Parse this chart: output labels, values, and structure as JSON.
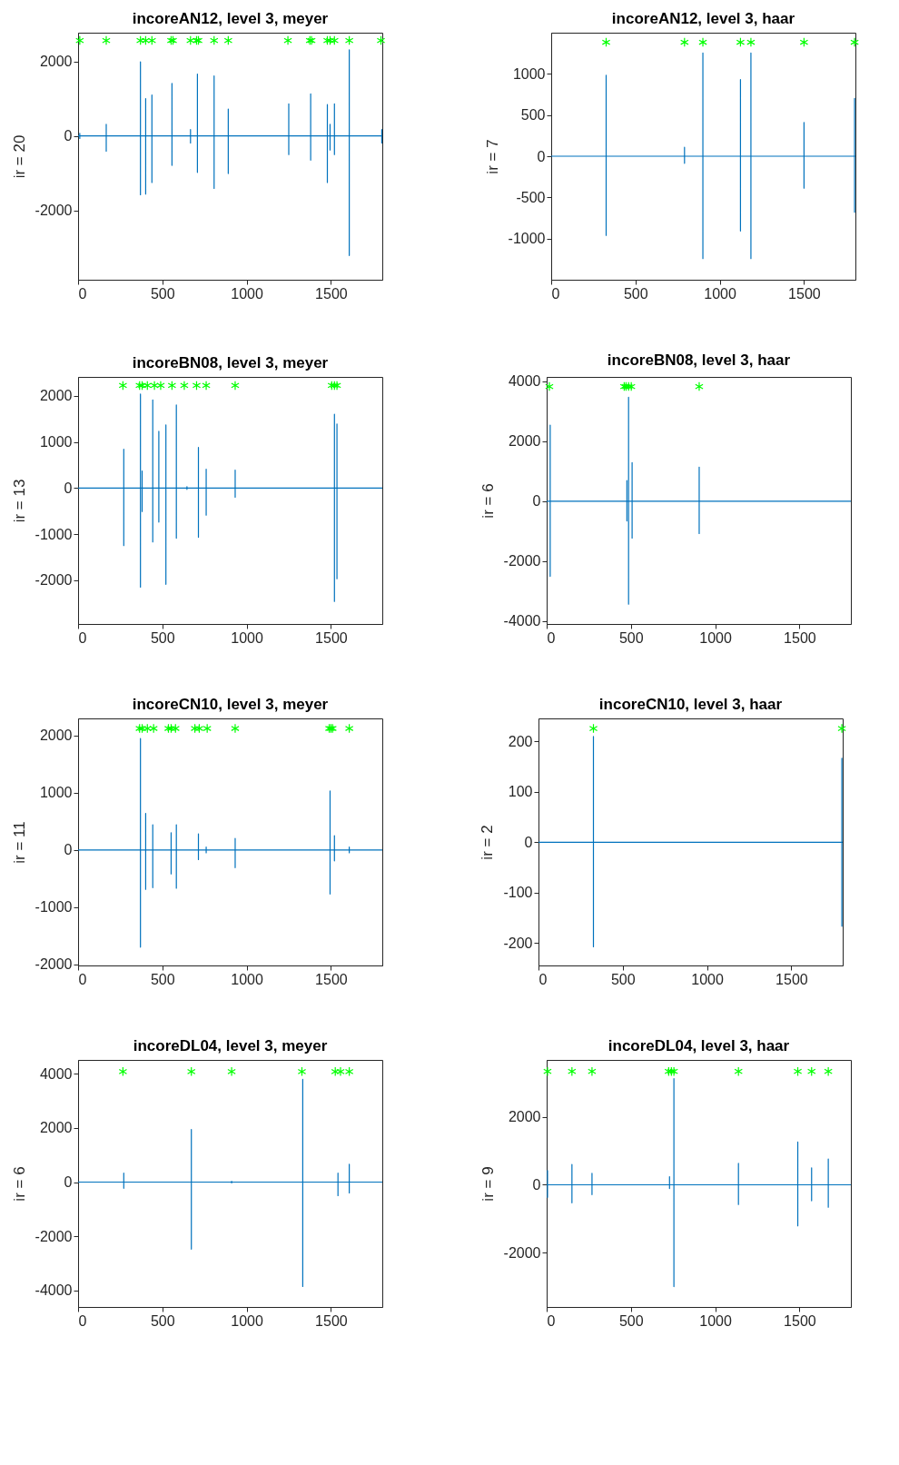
{
  "chart_data": [
    {
      "type": "line",
      "title": "incoreAN12, level 3, meyer",
      "ylabel": "ir = 20",
      "xlim": [
        0,
        1805
      ],
      "xticks": [
        0,
        500,
        1000,
        1500
      ],
      "ylim": [
        -3860,
        2770
      ],
      "yticks": [
        -2000,
        0,
        2000
      ],
      "series": [
        {
          "color": "#0072bd",
          "x": [
            0,
            10,
            10,
            10,
            10,
            167,
            167,
            167,
            167,
            370,
            370,
            370,
            370,
            401,
            401,
            401,
            401,
            438,
            438,
            438,
            438,
            557,
            557,
            557,
            557,
            667,
            667,
            667,
            667,
            708,
            708,
            708,
            708,
            807,
            807,
            807,
            807,
            891,
            891,
            891,
            891,
            1250,
            1250,
            1250,
            1250,
            1380,
            1380,
            1380,
            1380,
            1479,
            1479,
            1479,
            1479,
            1495,
            1495,
            1495,
            1495,
            1521,
            1521,
            1521,
            1521,
            1609,
            1609,
            1609,
            1609,
            1802,
            1802,
            1802,
            1802,
            1805
          ],
          "values": [
            0,
            0,
            70,
            -70,
            0,
            0,
            310,
            -410,
            0,
            0,
            1990,
            -1580,
            0,
            0,
            1000,
            -1560,
            0,
            0,
            1100,
            -1250,
            0,
            0,
            1410,
            -790,
            0,
            0,
            170,
            -190,
            0,
            0,
            1660,
            -980,
            0,
            0,
            1610,
            -1410,
            0,
            0,
            720,
            -1010,
            0,
            0,
            860,
            -500,
            0,
            0,
            1130,
            -650,
            0,
            0,
            840,
            -1250,
            0,
            0,
            310,
            -380,
            0,
            0,
            860,
            -500,
            0,
            0,
            2310,
            -3210,
            0,
            0,
            170,
            -190,
            0,
            0
          ]
        },
        {
          "type": "scatter",
          "color": "#00ff00",
          "marker": "cross",
          "x": [
            10,
            167,
            370,
            401,
            438,
            552,
            563,
            667,
            703,
            714,
            807,
            891,
            1245,
            1375,
            1385,
            1479,
            1495,
            1521,
            1609,
            1797
          ],
          "values": [
            2560,
            2560,
            2560,
            2560,
            2560,
            2560,
            2560,
            2560,
            2560,
            2560,
            2560,
            2560,
            2560,
            2560,
            2560,
            2560,
            2560,
            2560,
            2560,
            2560
          ]
        }
      ]
    },
    {
      "type": "line",
      "title": "incoreAN12, level 3, haar",
      "ylabel": "ir = 7",
      "xlim": [
        0,
        1805
      ],
      "xticks": [
        0,
        500,
        1000,
        1500
      ],
      "ylim": [
        -1500,
        1500
      ],
      "yticks": [
        -1000,
        -500,
        0,
        500,
        1000
      ],
      "series": [
        {
          "color": "#0072bd",
          "x": [
            0,
            326,
            326,
            326,
            326,
            791,
            791,
            791,
            791,
            900,
            900,
            900,
            900,
            1123,
            1123,
            1123,
            1123,
            1185,
            1185,
            1185,
            1185,
            1500,
            1500,
            1500,
            1500,
            1800,
            1800,
            1800,
            1800,
            1805
          ],
          "values": [
            0,
            0,
            984,
            -962,
            0,
            0,
            108,
            -86,
            0,
            0,
            1254,
            -1243,
            0,
            0,
            930,
            -908,
            0,
            0,
            1254,
            -1243,
            0,
            0,
            411,
            -389,
            0,
            0,
            703,
            -681,
            0,
            0
          ]
        },
        {
          "type": "scatter",
          "color": "#00ff00",
          "marker": "cross",
          "x": [
            326,
            791,
            900,
            1123,
            1185,
            1500,
            1800
          ],
          "values": [
            1384,
            1384,
            1384,
            1384,
            1384,
            1384,
            1384
          ]
        }
      ]
    },
    {
      "type": "line",
      "title": "incoreBN08, level 3, meyer",
      "ylabel": "ir = 13",
      "xlim": [
        0,
        1805
      ],
      "xticks": [
        0,
        500,
        1000,
        1500
      ],
      "ylim": [
        -2950,
        2410
      ],
      "yticks": [
        -2000,
        -1000,
        0,
        1000,
        2000
      ],
      "series": [
        {
          "color": "#0072bd",
          "x": [
            0,
            271,
            271,
            271,
            271,
            370,
            370,
            370,
            370,
            380,
            380,
            380,
            380,
            443,
            443,
            443,
            443,
            479,
            479,
            479,
            479,
            521,
            521,
            521,
            521,
            583,
            583,
            583,
            583,
            646,
            646,
            646,
            646,
            714,
            714,
            714,
            714,
            760,
            760,
            760,
            760,
            932,
            932,
            932,
            932,
            1521,
            1521,
            1521,
            1521,
            1536,
            1536,
            1536,
            1536,
            1805
          ],
          "values": [
            0,
            0,
            840,
            -1250,
            0,
            0,
            2040,
            -2150,
            0,
            0,
            370,
            -510,
            0,
            0,
            1910,
            -1170,
            0,
            0,
            1230,
            -740,
            0,
            0,
            1370,
            -2090,
            0,
            0,
            1800,
            -1090,
            0,
            0,
            30,
            -30,
            0,
            0,
            880,
            -1070,
            0,
            0,
            410,
            -590,
            0,
            0,
            390,
            -200,
            0,
            0,
            1600,
            -2460,
            0,
            0,
            1390,
            -1970,
            0,
            0
          ]
        },
        {
          "type": "scatter",
          "color": "#00ff00",
          "marker": "cross",
          "x": [
            266,
            365,
            380,
            411,
            453,
            490,
            557,
            630,
            703,
            760,
            932,
            1505,
            1521,
            1536
          ],
          "values": [
            2224,
            2224,
            2224,
            2224,
            2224,
            2224,
            2224,
            2224,
            2224,
            2224,
            2224,
            2224,
            2224,
            2224
          ]
        }
      ]
    },
    {
      "type": "line",
      "title": "incoreBN08, level 3, haar",
      "ylabel": "ir = 6",
      "xlim": [
        0,
        1805
      ],
      "xticks": [
        0,
        500,
        1000,
        1500
      ],
      "ylim": [
        -4100,
        4150
      ],
      "yticks": [
        -4000,
        -2000,
        0,
        2000,
        4000
      ],
      "series": [
        {
          "color": "#0072bd",
          "x": [
            0,
            21,
            21,
            21,
            21,
            476,
            476,
            476,
            476,
            486,
            486,
            486,
            486,
            507,
            507,
            507,
            507,
            905,
            905,
            905,
            905,
            1805
          ],
          "values": [
            0,
            0,
            2540,
            -2510,
            0,
            0,
            690,
            -660,
            0,
            0,
            3470,
            -3440,
            0,
            0,
            1290,
            -1230,
            0,
            0,
            1140,
            -1080,
            0,
            0
          ]
        },
        {
          "type": "scatter",
          "color": "#00ff00",
          "marker": "cross",
          "x": [
            16,
            460,
            471,
            486,
            502,
            905
          ],
          "values": [
            3830,
            3830,
            3830,
            3830,
            3830,
            3830
          ]
        }
      ]
    },
    {
      "type": "line",
      "title": "incoreCN10, level 3, meyer",
      "ylabel": "ir = 11",
      "xlim": [
        0,
        1805
      ],
      "xticks": [
        0,
        500,
        1000,
        1500
      ],
      "ylim": [
        -2020,
        2300
      ],
      "yticks": [
        -2000,
        -1000,
        0,
        1000,
        2000
      ],
      "series": [
        {
          "color": "#0072bd",
          "x": [
            0,
            370,
            370,
            370,
            370,
            401,
            401,
            401,
            401,
            443,
            443,
            443,
            443,
            552,
            552,
            552,
            552,
            583,
            583,
            583,
            583,
            714,
            714,
            714,
            714,
            760,
            760,
            760,
            760,
            932,
            932,
            932,
            932,
            1495,
            1495,
            1495,
            1495,
            1521,
            1521,
            1521,
            1521,
            1609,
            1609,
            1609,
            1609,
            1805
          ],
          "values": [
            0,
            0,
            1950,
            -1700,
            0,
            0,
            640,
            -690,
            0,
            0,
            440,
            -660,
            0,
            0,
            300,
            -420,
            0,
            0,
            440,
            -670,
            0,
            0,
            280,
            -170,
            0,
            0,
            50,
            -50,
            0,
            0,
            200,
            -310,
            0,
            0,
            1030,
            -770,
            0,
            0,
            250,
            -190,
            0,
            0,
            50,
            -50,
            0,
            0
          ]
        },
        {
          "type": "scatter",
          "color": "#00ff00",
          "marker": "cross",
          "x": [
            365,
            380,
            411,
            448,
            536,
            552,
            578,
            693,
            719,
            766,
            932,
            1490,
            1500,
            1510,
            1609
          ],
          "values": [
            2125,
            2125,
            2125,
            2125,
            2125,
            2125,
            2125,
            2125,
            2125,
            2125,
            2125,
            2125,
            2125,
            2125,
            2125
          ]
        }
      ]
    },
    {
      "type": "line",
      "title": "incoreCN10, level 3, haar",
      "ylabel": "ir = 2",
      "xlim": [
        0,
        1805
      ],
      "xticks": [
        0,
        500,
        1000,
        1500
      ],
      "ylim": [
        -245,
        246
      ],
      "yticks": [
        -200,
        -100,
        0,
        100,
        200
      ],
      "series": [
        {
          "color": "#0072bd",
          "x": [
            0,
            326,
            326,
            326,
            326,
            1800,
            1800,
            1800,
            1800,
            1805
          ],
          "values": [
            0,
            0,
            210,
            -208,
            0,
            0,
            167,
            -167,
            0,
            0
          ]
        },
        {
          "type": "scatter",
          "color": "#00ff00",
          "marker": "cross",
          "x": [
            326,
            1800
          ],
          "values": [
            226,
            226
          ]
        }
      ]
    },
    {
      "type": "line",
      "title": "incoreDL04, level 3, meyer",
      "ylabel": "ir = 6",
      "xlim": [
        0,
        1805
      ],
      "xticks": [
        0,
        500,
        1000,
        1500
      ],
      "ylim": [
        -4620,
        4520
      ],
      "yticks": [
        -4000,
        -2000,
        0,
        2000,
        4000
      ],
      "series": [
        {
          "color": "#0072bd",
          "x": [
            0,
            271,
            271,
            271,
            271,
            672,
            672,
            672,
            672,
            911,
            911,
            911,
            911,
            1333,
            1333,
            1333,
            1333,
            1542,
            1542,
            1542,
            1542,
            1609,
            1609,
            1609,
            1609,
            1805
          ],
          "values": [
            0,
            0,
            330,
            -230,
            0,
            0,
            1950,
            -2480,
            0,
            0,
            30,
            -30,
            0,
            0,
            3800,
            -3860,
            0,
            0,
            330,
            -500,
            0,
            0,
            660,
            -400,
            0,
            0
          ]
        },
        {
          "type": "scatter",
          "color": "#00ff00",
          "marker": "cross",
          "x": [
            266,
            672,
            911,
            1328,
            1526,
            1557,
            1609
          ],
          "values": [
            4090,
            4090,
            4090,
            4090,
            4090,
            4090,
            4090
          ]
        }
      ]
    },
    {
      "type": "line",
      "title": "incoreDL04, level 3, haar",
      "ylabel": "ir = 9",
      "xlim": [
        0,
        1805
      ],
      "xticks": [
        0,
        500,
        1000,
        1500
      ],
      "ylim": [
        -3600,
        3680
      ],
      "yticks": [
        -2000,
        0,
        2000
      ],
      "series": [
        {
          "color": "#0072bd",
          "x": [
            0,
            5,
            5,
            5,
            5,
            150,
            150,
            150,
            150,
            269,
            269,
            269,
            269,
            729,
            729,
            729,
            729,
            755,
            755,
            755,
            755,
            1138,
            1138,
            1138,
            1138,
            1490,
            1490,
            1490,
            1490,
            1572,
            1572,
            1572,
            1572,
            1671,
            1671,
            1671,
            1671,
            1805
          ],
          "values": [
            0,
            0,
            420,
            -370,
            0,
            0,
            600,
            -530,
            0,
            0,
            340,
            -290,
            0,
            0,
            240,
            -110,
            0,
            0,
            3130,
            -3000,
            0,
            0,
            630,
            -580,
            0,
            0,
            1260,
            -1210,
            0,
            0,
            500,
            -470,
            0,
            0,
            760,
            -660,
            0,
            0
          ]
        },
        {
          "type": "scatter",
          "color": "#00ff00",
          "marker": "cross",
          "x": [
            5,
            150,
            269,
            724,
            740,
            755,
            1138,
            1490,
            1572,
            1671
          ],
          "values": [
            3340,
            3340,
            3340,
            3340,
            3340,
            3340,
            3340,
            3340,
            3340,
            3340
          ]
        }
      ]
    }
  ]
}
